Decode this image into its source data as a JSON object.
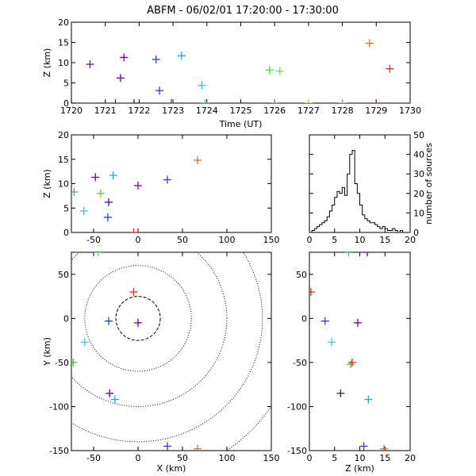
{
  "title": "ABFM - 06/02/01 17:20:00 - 17:30:00",
  "chart_data": [
    {
      "id": "time-height",
      "type": "scatter",
      "xlabel": "Time (UT)",
      "ylabel": "Z (km)",
      "xlim": [
        1720,
        1730
      ],
      "ylim": [
        0,
        20
      ],
      "xticks": [
        "1720",
        "1721",
        "1722",
        "1723",
        "1724",
        "1725",
        "1726",
        "1727",
        "1728",
        "1729",
        "1730"
      ],
      "yticks": [
        "0",
        "5",
        "10",
        "15",
        "20"
      ],
      "points": [
        {
          "x": 1720.0,
          "y": 0.0,
          "color": "#000000"
        },
        {
          "x": 1720.55,
          "y": 9.6,
          "color": "#7f00bf"
        },
        {
          "x": 1721.3,
          "y": 0.0,
          "color": "#6a00a0"
        },
        {
          "x": 1721.45,
          "y": 6.2,
          "color": "#6a00a0"
        },
        {
          "x": 1721.85,
          "y": 0.0,
          "color": "#4000a0"
        },
        {
          "x": 1721.55,
          "y": 11.3,
          "color": "#6a00a0"
        },
        {
          "x": 1722.5,
          "y": 10.8,
          "color": "#2a3fd0"
        },
        {
          "x": 1722.6,
          "y": 3.1,
          "color": "#2a3fd0"
        },
        {
          "x": 1722.95,
          "y": 0.0,
          "color": "#2a3fd0"
        },
        {
          "x": 1723.25,
          "y": 11.7,
          "color": "#2a9fd0"
        },
        {
          "x": 1723.85,
          "y": 4.4,
          "color": "#20d0e0"
        },
        {
          "x": 1723.95,
          "y": 0.0,
          "color": "#20d0e0"
        },
        {
          "x": 1725.85,
          "y": 8.2,
          "color": "#40e040"
        },
        {
          "x": 1726.15,
          "y": 7.9,
          "color": "#80e040"
        },
        {
          "x": 1726.0,
          "y": 0.0,
          "color": "#40c040"
        },
        {
          "x": 1727.0,
          "y": 0.0,
          "color": "#d0d000"
        },
        {
          "x": 1728.0,
          "y": 0.0,
          "color": "#e0a000"
        },
        {
          "x": 1728.8,
          "y": 14.8,
          "color": "#e07020"
        },
        {
          "x": 1729.0,
          "y": 0.0,
          "color": "#d02000"
        },
        {
          "x": 1729.4,
          "y": 8.5,
          "color": "#e03020"
        }
      ]
    },
    {
      "id": "x-height",
      "type": "scatter",
      "xlabel": "",
      "ylabel": "Z (km)",
      "xlim": [
        -75,
        150
      ],
      "ylim": [
        0,
        20
      ],
      "xticks": [
        "-50",
        "0",
        "50",
        "100",
        "150"
      ],
      "yticks": [
        "0",
        "5",
        "10",
        "15",
        "20"
      ],
      "points": [
        {
          "x": -72,
          "y": 8.3,
          "color": "#40c040"
        },
        {
          "x": -61,
          "y": 4.4,
          "color": "#20d0e0"
        },
        {
          "x": -48,
          "y": 11.3,
          "color": "#6a00a0"
        },
        {
          "x": -42,
          "y": 8.0,
          "color": "#60d040"
        },
        {
          "x": -28,
          "y": 11.7,
          "color": "#2a9fd0"
        },
        {
          "x": -33,
          "y": 6.2,
          "color": "#6a00a0"
        },
        {
          "x": -34,
          "y": 3.1,
          "color": "#2a3fd0"
        },
        {
          "x": -5,
          "y": 0.0,
          "color": "#e03020"
        },
        {
          "x": 0,
          "y": 9.6,
          "color": "#7f00bf"
        },
        {
          "x": 33,
          "y": 10.8,
          "color": "#2a3fd0"
        },
        {
          "x": 67,
          "y": 14.8,
          "color": "#e07020"
        }
      ]
    },
    {
      "id": "height-histogram",
      "type": "bar",
      "xlabel": "",
      "ylabel": "number of sources",
      "xlim": [
        0,
        20
      ],
      "ylim": [
        0,
        50
      ],
      "xticks": [
        "0",
        "5",
        "10",
        "15",
        "20"
      ],
      "yticks": [
        "0",
        "10",
        "20",
        "30",
        "40",
        "50"
      ],
      "bin_width": 0.5,
      "bin_start": 0,
      "values": [
        0,
        1,
        2,
        3,
        4,
        5,
        6,
        8,
        11,
        14,
        18,
        21,
        20,
        23,
        19,
        30,
        40,
        42,
        25,
        20,
        14,
        9,
        7,
        6,
        5,
        5,
        4,
        3,
        2,
        3,
        2,
        1,
        1,
        2,
        1,
        0,
        1,
        0,
        0,
        0
      ]
    },
    {
      "id": "plan-view",
      "type": "scatter",
      "xlabel": "X (km)",
      "ylabel": "Y (km)",
      "xlim": [
        -75,
        150
      ],
      "ylim": [
        -150,
        75
      ],
      "xticks": [
        "-50",
        "0",
        "50",
        "100",
        "150"
      ],
      "yticks": [
        "-150",
        "-100",
        "-50",
        "0",
        "50"
      ],
      "range_rings_km": [
        25,
        60,
        100,
        140,
        180
      ],
      "points": [
        {
          "x": -50,
          "y": 75,
          "color": "#2a3fd0"
        },
        {
          "x": -45,
          "y": 75,
          "color": "#60d040"
        },
        {
          "x": -5,
          "y": 30,
          "color": "#e03020"
        },
        {
          "x": -33,
          "y": -3,
          "color": "#2a3fd0"
        },
        {
          "x": 0,
          "y": -5,
          "color": "#6a00a0"
        },
        {
          "x": -60,
          "y": -27,
          "color": "#20d0e0"
        },
        {
          "x": -73,
          "y": -50,
          "color": "#40c040"
        },
        {
          "x": -32,
          "y": -85,
          "color": "#6a00a0"
        },
        {
          "x": -26,
          "y": -92,
          "color": "#2a9fd0"
        },
        {
          "x": 33,
          "y": -145,
          "color": "#2a3fd0"
        },
        {
          "x": 67,
          "y": -148,
          "color": "#e07020"
        }
      ]
    },
    {
      "id": "height-y",
      "type": "scatter",
      "xlabel": "Z (km)",
      "ylabel": "",
      "xlim": [
        0,
        20
      ],
      "ylim": [
        -150,
        75
      ],
      "xticks": [
        "0",
        "5",
        "10",
        "15",
        "20"
      ],
      "yticks": [
        "-150",
        "-100",
        "-50",
        "0",
        "50"
      ],
      "points": [
        {
          "x": 0.3,
          "y": 30,
          "color": "#e03020"
        },
        {
          "x": 7.8,
          "y": 75,
          "color": "#40c040"
        },
        {
          "x": 11.5,
          "y": 75,
          "color": "#6a00a0"
        },
        {
          "x": 3.1,
          "y": -3,
          "color": "#2a3fd0"
        },
        {
          "x": 9.6,
          "y": -5,
          "color": "#6a00a0"
        },
        {
          "x": 4.4,
          "y": -27,
          "color": "#20d0e0"
        },
        {
          "x": 8.2,
          "y": -52,
          "color": "#40c040"
        },
        {
          "x": 8.5,
          "y": -50,
          "color": "#e03020"
        },
        {
          "x": 6.2,
          "y": -85,
          "color": "#6a00a0"
        },
        {
          "x": 11.7,
          "y": -92,
          "color": "#2a9fd0"
        },
        {
          "x": 10.8,
          "y": -145,
          "color": "#2a3fd0"
        },
        {
          "x": 14.8,
          "y": -148,
          "color": "#e07020"
        }
      ]
    }
  ]
}
